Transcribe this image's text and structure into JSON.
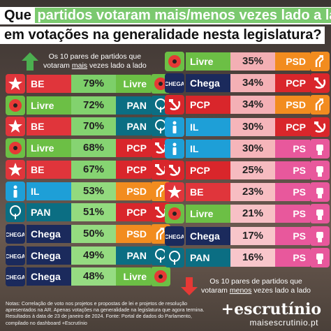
{
  "title": {
    "line1_pre": "Que",
    "line1_highlight": "partidos votaram mais/menos vezes lado a lado",
    "line2": "em votações na generalidade nesta legislatura?"
  },
  "legend_top": {
    "line1": "Os 10 pares de partidos que",
    "line2_pre": "votaram",
    "line2_u": "mais",
    "line2_post": "vezes lado a lado"
  },
  "legend_bottom": {
    "line1": "Os 10 pares de partidos que",
    "line2_pre": "votaram",
    "line2_u": "menos",
    "line2_post": "vezes lado a lado"
  },
  "colors": {
    "BE": "#e0353b",
    "Livre": "#6cbf45",
    "IL": "#1e9fd7",
    "PAN": "#0b6e83",
    "Chega": "#1b2a5c",
    "PCP": "#d9262b",
    "PSD": "#f28c1f",
    "PS": "#e8589c"
  },
  "icons": {
    "BE": "star-icon",
    "Livre": "poppy-icon",
    "IL": "il-icon",
    "PAN": "tree-icon",
    "Chega": "chega-icon",
    "PCP": "hammer-sickle-icon",
    "PSD": "psd-arrows-icon",
    "PS": "fist-icon"
  },
  "chart_data": [
    {
      "type": "bar",
      "title": "Os 10 pares de partidos que votaram mais vezes lado a lado",
      "series": [
        {
          "values": [
            79,
            72,
            70,
            68,
            67,
            53,
            51,
            50,
            49,
            48
          ]
        }
      ],
      "pairs": [
        {
          "a": "BE",
          "b": "Livre",
          "label": "79%"
        },
        {
          "a": "Livre",
          "b": "PAN",
          "label": "72%"
        },
        {
          "a": "BE",
          "b": "PAN",
          "label": "70%"
        },
        {
          "a": "Livre",
          "b": "PCP",
          "label": "68%"
        },
        {
          "a": "BE",
          "b": "PCP",
          "label": "67%"
        },
        {
          "a": "IL",
          "b": "PSD",
          "label": "53%"
        },
        {
          "a": "PAN",
          "b": "PCP",
          "label": "51%"
        },
        {
          "a": "Chega",
          "b": "PSD",
          "label": "50%"
        },
        {
          "a": "Chega",
          "b": "PAN",
          "label": "49%"
        },
        {
          "a": "Chega",
          "b": "Livre",
          "label": "48%"
        }
      ],
      "ylim": [
        0,
        100
      ]
    },
    {
      "type": "bar",
      "title": "Os 10 pares de partidos que votaram menos vezes lado a lado",
      "series": [
        {
          "values": [
            35,
            34,
            34,
            30,
            30,
            25,
            23,
            21,
            17,
            16
          ]
        }
      ],
      "pairs": [
        {
          "a": "Livre",
          "b": "PSD",
          "label": "35%"
        },
        {
          "a": "Chega",
          "b": "PCP",
          "label": "34%"
        },
        {
          "a": "PCP",
          "b": "PSD",
          "label": "34%"
        },
        {
          "a": "IL",
          "b": "PCP",
          "label": "30%"
        },
        {
          "a": "IL",
          "b": "PS",
          "label": "30%"
        },
        {
          "a": "PCP",
          "b": "PS",
          "label": "25%"
        },
        {
          "a": "BE",
          "b": "PS",
          "label": "23%"
        },
        {
          "a": "Livre",
          "b": "PS",
          "label": "21%"
        },
        {
          "a": "Chega",
          "b": "PS",
          "label": "17%"
        },
        {
          "a": "PAN",
          "b": "PS",
          "label": "16%"
        }
      ],
      "ylim": [
        0,
        100
      ]
    }
  ],
  "notes": "Notas: Correlação de voto nos projetos e propostas de lei e projetos de resolução apresentados na AR. Apenas votações na generalidade na legislatura que agora termina. Resultados à data de 23 de janeiro de 2024. Fonte: Portal de dados do Parlamento, compilado no dashboard +Escrutínio",
  "brand": "+escrutínio",
  "site": "maisescrutinio.pt"
}
